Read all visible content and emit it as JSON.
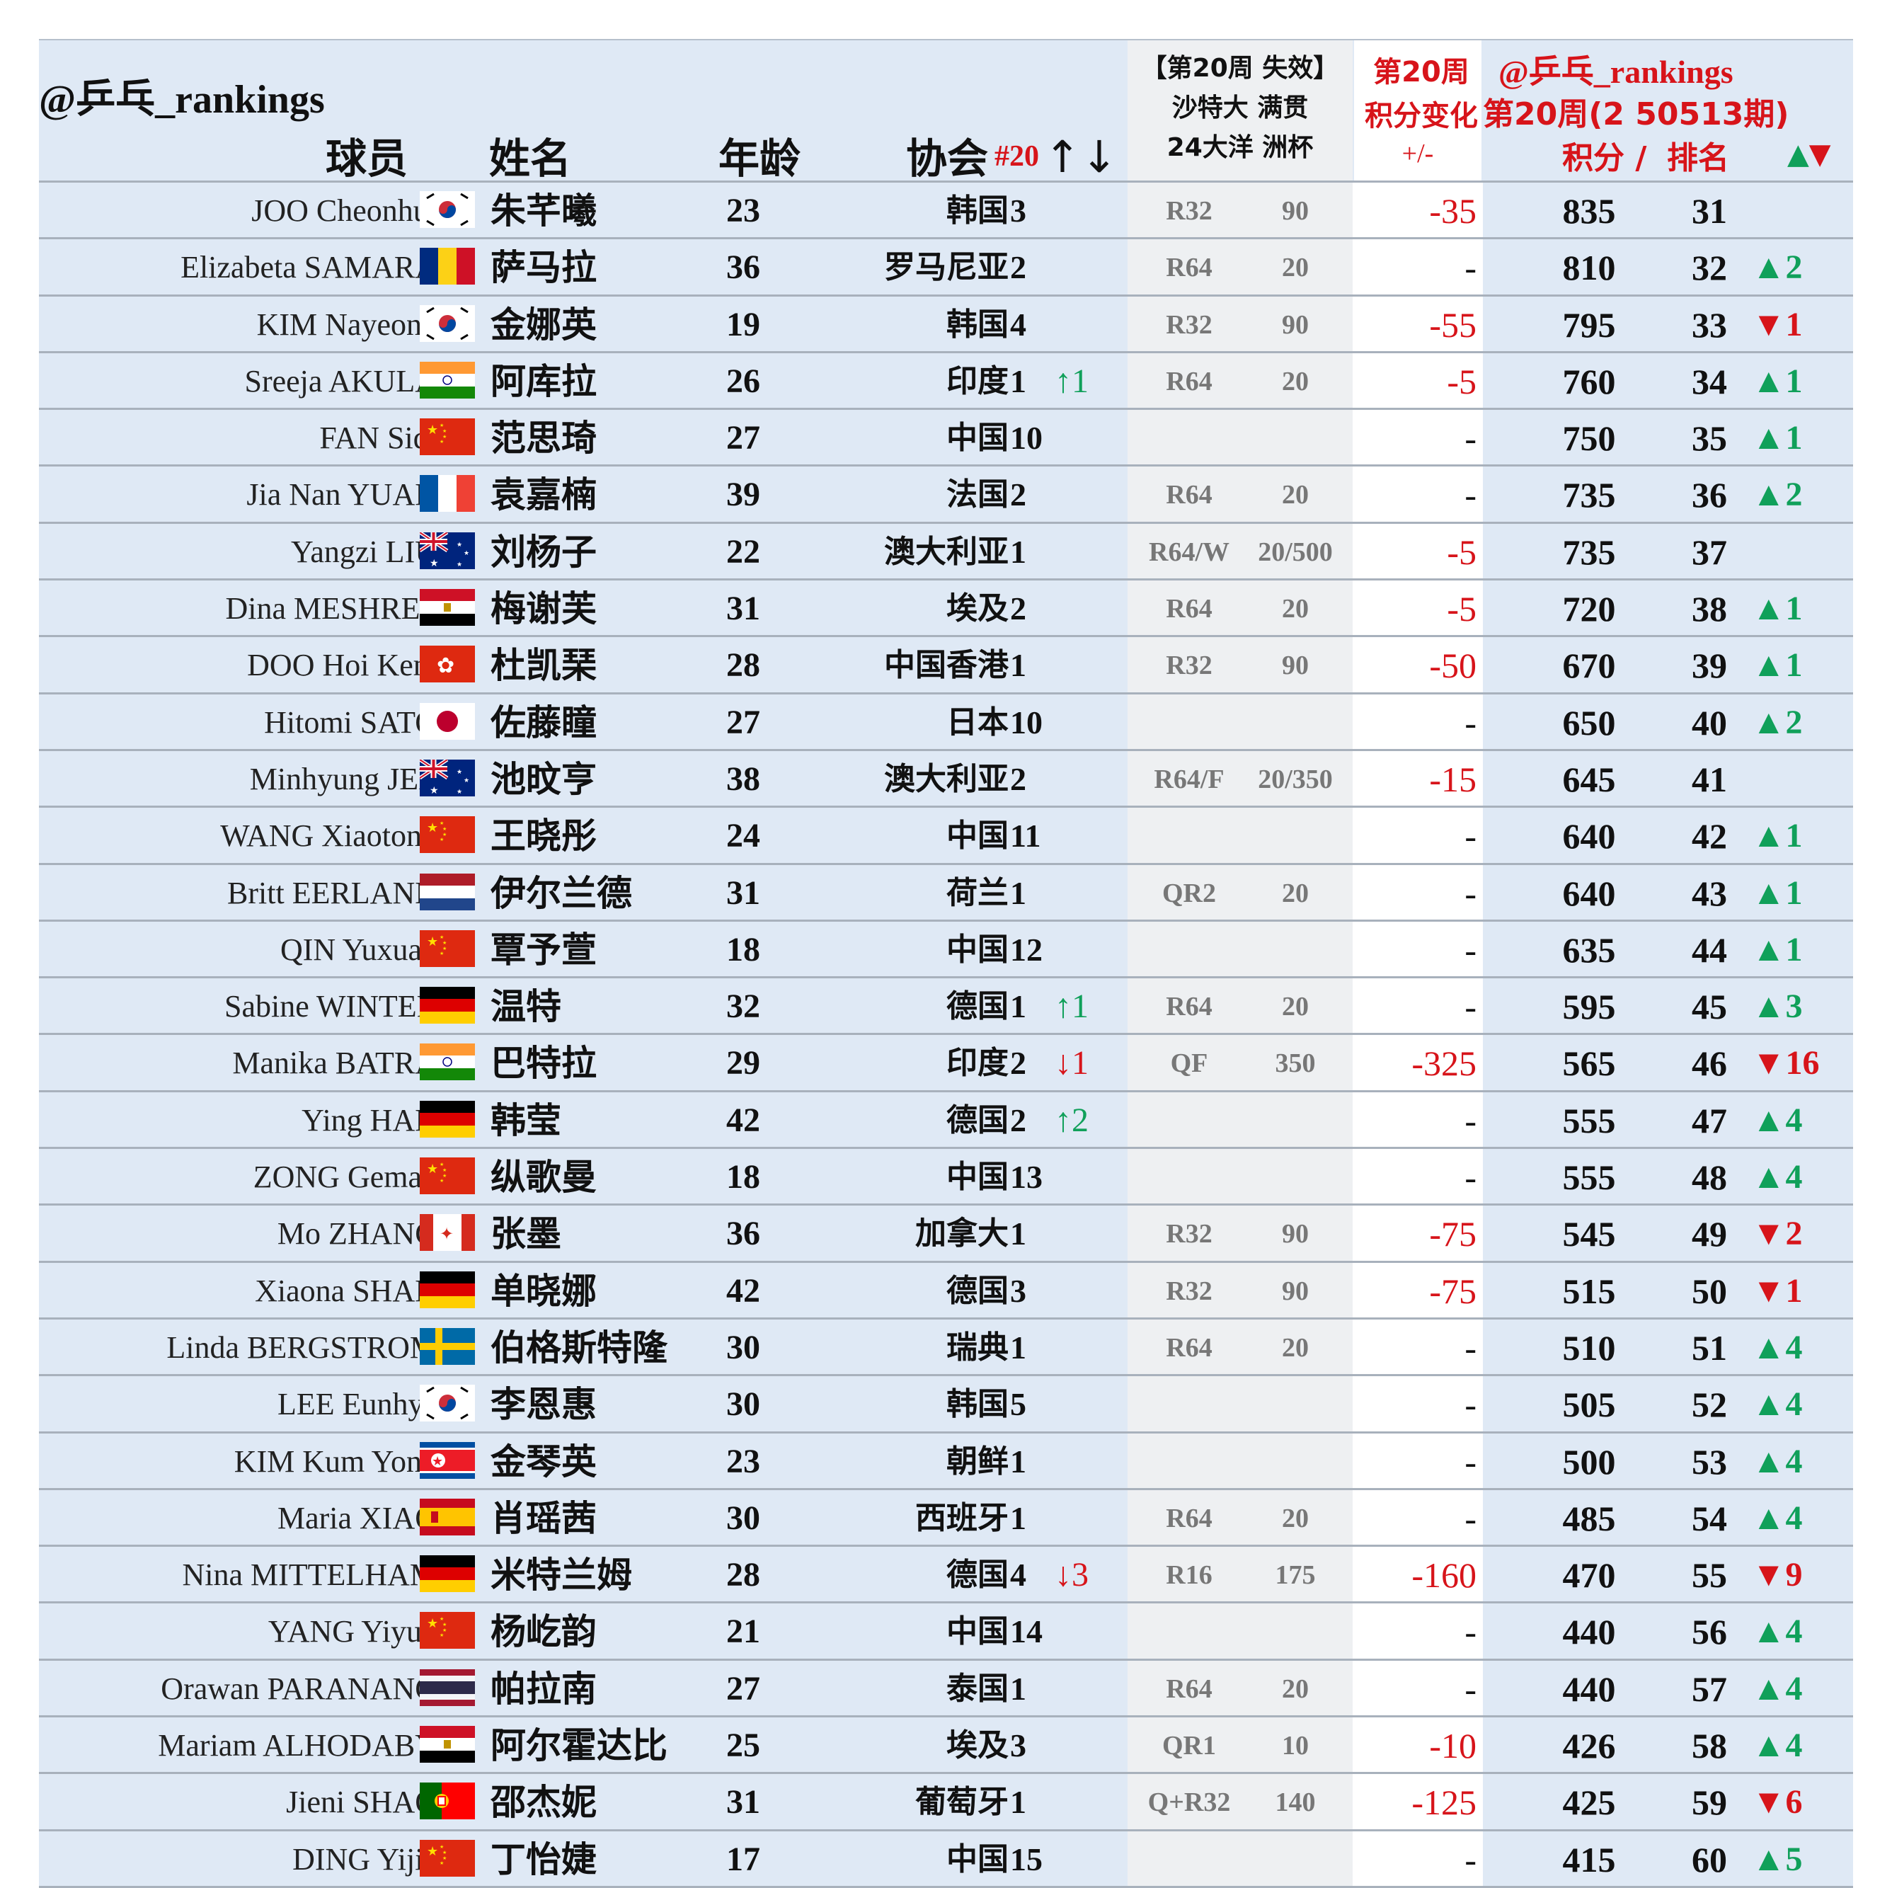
{
  "watermark": "@乒乓_rankings",
  "header": {
    "col_player": "球员",
    "col_name": "姓名",
    "col_age": "年龄",
    "col_assoc": "协会",
    "col_count": "#20",
    "col_count_arrows": "↑↓",
    "expire_line1": "【第20周 失效】",
    "expire_line2": "沙特大 满贯",
    "expire_line3": "24大洋 洲杯",
    "change_line1": "第20周",
    "change_line2": "积分变化",
    "change_line3": "+/-",
    "brand": "@乒乓_rankings",
    "week": "第20周(2 50513期)",
    "points_label": "积分 /",
    "rank_label": "排名",
    "rank_move_symbols_up": "▲",
    "rank_move_symbols_down": "▼"
  },
  "colors": {
    "header_bg": "#dfe9f5",
    "row_bg": "#dfe9f5",
    "event_bg": "#eef0f2",
    "red": "#d7141a",
    "green": "#10a05a"
  },
  "rows": [
    {
      "en": "JOO Cheonhui",
      "flag": "KOR",
      "cn": "朱芊曦",
      "age": "23",
      "assoc": "韩国",
      "count": "3",
      "mv": "",
      "round": "R32",
      "exp": "90",
      "delta": "-35",
      "points": "835",
      "rank": "31",
      "rmove": ""
    },
    {
      "en": "Elizabeta SAMARA",
      "flag": "ROU",
      "cn": "萨马拉",
      "age": "36",
      "assoc": "罗马尼亚",
      "count": "2",
      "mv": "",
      "round": "R64",
      "exp": "20",
      "delta": "-",
      "points": "810",
      "rank": "32",
      "rmove": "▲2"
    },
    {
      "en": "KIM Nayeong",
      "flag": "KOR",
      "cn": "金娜英",
      "age": "19",
      "assoc": "韩国",
      "count": "4",
      "mv": "",
      "round": "R32",
      "exp": "90",
      "delta": "-55",
      "points": "795",
      "rank": "33",
      "rmove": "▼1"
    },
    {
      "en": "Sreeja AKULA",
      "flag": "IND",
      "cn": "阿库拉",
      "age": "26",
      "assoc": "印度",
      "count": "1",
      "mv": "↑1",
      "round": "R64",
      "exp": "20",
      "delta": "-5",
      "points": "760",
      "rank": "34",
      "rmove": "▲1"
    },
    {
      "en": "FAN Siqi",
      "flag": "CHN",
      "cn": "范思琦",
      "age": "27",
      "assoc": "中国",
      "count": "10",
      "mv": "",
      "round": "",
      "exp": "",
      "delta": "-",
      "points": "750",
      "rank": "35",
      "rmove": "▲1"
    },
    {
      "en": "Jia Nan YUAN",
      "flag": "FRA",
      "cn": "袁嘉楠",
      "age": "39",
      "assoc": "法国",
      "count": "2",
      "mv": "",
      "round": "R64",
      "exp": "20",
      "delta": "-",
      "points": "735",
      "rank": "36",
      "rmove": "▲2"
    },
    {
      "en": "Yangzi LIU",
      "flag": "AUS",
      "cn": "刘杨子",
      "age": "22",
      "assoc": "澳大利亚",
      "count": "1",
      "mv": "",
      "round": "R64/W",
      "exp": "20/500",
      "delta": "-5",
      "points": "735",
      "rank": "37",
      "rmove": ""
    },
    {
      "en": "Dina MESHREF",
      "flag": "EGY",
      "cn": "梅谢芙",
      "age": "31",
      "assoc": "埃及",
      "count": "2",
      "mv": "",
      "round": "R64",
      "exp": "20",
      "delta": "-5",
      "points": "720",
      "rank": "38",
      "rmove": "▲1"
    },
    {
      "en": "DOO Hoi Kem",
      "flag": "HKG",
      "cn": "杜凯琹",
      "age": "28",
      "assoc": "中国香港",
      "count": "1",
      "mv": "",
      "round": "R32",
      "exp": "90",
      "delta": "-50",
      "points": "670",
      "rank": "39",
      "rmove": "▲1"
    },
    {
      "en": "Hitomi SATO",
      "flag": "JPN",
      "cn": "佐藤瞳",
      "age": "27",
      "assoc": "日本",
      "count": "10",
      "mv": "",
      "round": "",
      "exp": "",
      "delta": "-",
      "points": "650",
      "rank": "40",
      "rmove": "▲2"
    },
    {
      "en": "Minhyung JEE",
      "flag": "AUS",
      "cn": "池旼亨",
      "age": "38",
      "assoc": "澳大利亚",
      "count": "2",
      "mv": "",
      "round": "R64/F",
      "exp": "20/350",
      "delta": "-15",
      "points": "645",
      "rank": "41",
      "rmove": ""
    },
    {
      "en": "WANG Xiaotong",
      "flag": "CHN",
      "cn": "王晓彤",
      "age": "24",
      "assoc": "中国",
      "count": "11",
      "mv": "",
      "round": "",
      "exp": "",
      "delta": "-",
      "points": "640",
      "rank": "42",
      "rmove": "▲1"
    },
    {
      "en": "Britt EERLAND",
      "flag": "NED",
      "cn": "伊尔兰德",
      "age": "31",
      "assoc": "荷兰",
      "count": "1",
      "mv": "",
      "round": "QR2",
      "exp": "20",
      "delta": "-",
      "points": "640",
      "rank": "43",
      "rmove": "▲1"
    },
    {
      "en": "QIN Yuxuan",
      "flag": "CHN",
      "cn": "覃予萱",
      "age": "18",
      "assoc": "中国",
      "count": "12",
      "mv": "",
      "round": "",
      "exp": "",
      "delta": "-",
      "points": "635",
      "rank": "44",
      "rmove": "▲1"
    },
    {
      "en": "Sabine WINTER",
      "flag": "GER",
      "cn": "温特",
      "age": "32",
      "assoc": "德国",
      "count": "1",
      "mv": "↑1",
      "round": "R64",
      "exp": "20",
      "delta": "-",
      "points": "595",
      "rank": "45",
      "rmove": "▲3"
    },
    {
      "en": "Manika BATRA",
      "flag": "IND",
      "cn": "巴特拉",
      "age": "29",
      "assoc": "印度",
      "count": "2",
      "mv": "↓1",
      "round": "QF",
      "exp": "350",
      "delta": "-325",
      "points": "565",
      "rank": "46",
      "rmove": "▼16"
    },
    {
      "en": "Ying HAN",
      "flag": "GER",
      "cn": "韩莹",
      "age": "42",
      "assoc": "德国",
      "count": "2",
      "mv": "↑2",
      "round": "",
      "exp": "",
      "delta": "-",
      "points": "555",
      "rank": "47",
      "rmove": "▲4"
    },
    {
      "en": "ZONG Geman",
      "flag": "CHN",
      "cn": "纵歌曼",
      "age": "18",
      "assoc": "中国",
      "count": "13",
      "mv": "",
      "round": "",
      "exp": "",
      "delta": "-",
      "points": "555",
      "rank": "48",
      "rmove": "▲4"
    },
    {
      "en": "Mo ZHANG",
      "flag": "CAN",
      "cn": "张墨",
      "age": "36",
      "assoc": "加拿大",
      "count": "1",
      "mv": "",
      "round": "R32",
      "exp": "90",
      "delta": "-75",
      "points": "545",
      "rank": "49",
      "rmove": "▼2"
    },
    {
      "en": "Xiaona SHAN",
      "flag": "GER",
      "cn": "单晓娜",
      "age": "42",
      "assoc": "德国",
      "count": "3",
      "mv": "",
      "round": "R32",
      "exp": "90",
      "delta": "-75",
      "points": "515",
      "rank": "50",
      "rmove": "▼1"
    },
    {
      "en": "Linda BERGSTROM",
      "flag": "SWE",
      "cn": "伯格斯特隆",
      "age": "30",
      "assoc": "瑞典",
      "count": "1",
      "mv": "",
      "round": "R64",
      "exp": "20",
      "delta": "-",
      "points": "510",
      "rank": "51",
      "rmove": "▲4"
    },
    {
      "en": "LEE Eunhye",
      "flag": "KOR",
      "cn": "李恩惠",
      "age": "30",
      "assoc": "韩国",
      "count": "5",
      "mv": "",
      "round": "",
      "exp": "",
      "delta": "-",
      "points": "505",
      "rank": "52",
      "rmove": "▲4"
    },
    {
      "en": "KIM Kum Yong",
      "flag": "PRK",
      "cn": "金琴英",
      "age": "23",
      "assoc": "朝鲜",
      "count": "1",
      "mv": "",
      "round": "",
      "exp": "",
      "delta": "-",
      "points": "500",
      "rank": "53",
      "rmove": "▲4"
    },
    {
      "en": "Maria XIAO",
      "flag": "ESP",
      "cn": "肖瑶茜",
      "age": "30",
      "assoc": "西班牙",
      "count": "1",
      "mv": "",
      "round": "R64",
      "exp": "20",
      "delta": "-",
      "points": "485",
      "rank": "54",
      "rmove": "▲4"
    },
    {
      "en": "Nina MITTELHAM",
      "flag": "GER",
      "cn": "米特兰姆",
      "age": "28",
      "assoc": "德国",
      "count": "4",
      "mv": "↓3",
      "round": "R16",
      "exp": "175",
      "delta": "-160",
      "points": "470",
      "rank": "55",
      "rmove": "▼9"
    },
    {
      "en": "YANG Yiyun",
      "flag": "CHN",
      "cn": "杨屹韵",
      "age": "21",
      "assoc": "中国",
      "count": "14",
      "mv": "",
      "round": "",
      "exp": "",
      "delta": "-",
      "points": "440",
      "rank": "56",
      "rmove": "▲4"
    },
    {
      "en": "Orawan PARANANG",
      "flag": "THA",
      "cn": "帕拉南",
      "age": "27",
      "assoc": "泰国",
      "count": "1",
      "mv": "",
      "round": "R64",
      "exp": "20",
      "delta": "-",
      "points": "440",
      "rank": "57",
      "rmove": "▲4"
    },
    {
      "en": "Mariam ALHODABY",
      "flag": "EGY",
      "cn": "阿尔霍达比",
      "age": "25",
      "assoc": "埃及",
      "count": "3",
      "mv": "",
      "round": "QR1",
      "exp": "10",
      "delta": "-10",
      "points": "426",
      "rank": "58",
      "rmove": "▲4"
    },
    {
      "en": "Jieni SHAO",
      "flag": "POR",
      "cn": "邵杰妮",
      "age": "31",
      "assoc": "葡萄牙",
      "count": "1",
      "mv": "",
      "round": "Q+R32",
      "exp": "140",
      "delta": "-125",
      "points": "425",
      "rank": "59",
      "rmove": "▼6"
    },
    {
      "en": "DING Yijie",
      "flag": "CHN",
      "cn": "丁怡婕",
      "age": "17",
      "assoc": "中国",
      "count": "15",
      "mv": "",
      "round": "",
      "exp": "",
      "delta": "-",
      "points": "415",
      "rank": "60",
      "rmove": "▲5"
    }
  ]
}
